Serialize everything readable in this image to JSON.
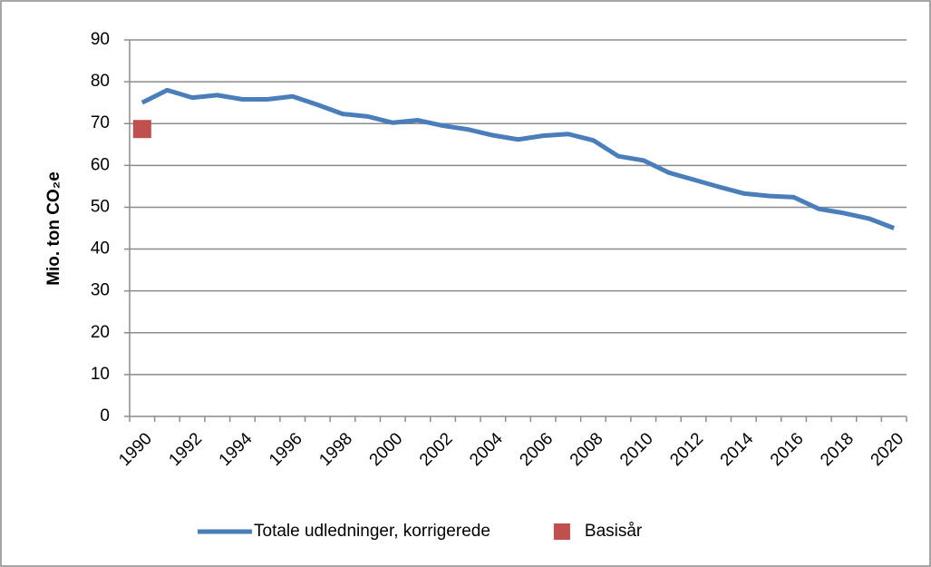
{
  "chart_data": {
    "type": "line",
    "y_label": "Mio. ton CO₂e",
    "categories": [
      "1990",
      null,
      "1992",
      null,
      "1994",
      null,
      "1996",
      null,
      "1998",
      null,
      "2000",
      null,
      "2002",
      null,
      "2004",
      null,
      "2006",
      null,
      "2008",
      null,
      "2010",
      null,
      "2012",
      null,
      "2014",
      null,
      "2016",
      null,
      "2018",
      null,
      "2020"
    ],
    "series": [
      {
        "name": "Totale udledninger, korrigerede",
        "color": "#4a7ebb",
        "marker": "line",
        "values": [
          75,
          78,
          76.2,
          76.8,
          75.8,
          75.8,
          76.5,
          74.5,
          72.3,
          71.7,
          70.2,
          70.8,
          69.5,
          68.6,
          67.2,
          66.2,
          67.1,
          67.5,
          66,
          62.2,
          61.2,
          58.3,
          56.6,
          54.9,
          53.3,
          52.7,
          52.4,
          49.6,
          48.6,
          47.3,
          45
        ]
      },
      {
        "name": "Basisår",
        "color": "#c0504d",
        "marker": "square",
        "values": [
          68.7,
          null,
          null,
          null,
          null,
          null,
          null,
          null,
          null,
          null,
          null,
          null,
          null,
          null,
          null,
          null,
          null,
          null,
          null,
          null,
          null,
          null,
          null,
          null,
          null,
          null,
          null,
          null,
          null,
          null,
          null
        ]
      }
    ],
    "ylim": [
      0,
      90
    ],
    "yticks": [
      0,
      10,
      20,
      30,
      40,
      50,
      60,
      70,
      80,
      90
    ],
    "grid": true,
    "legend": "bottom"
  }
}
